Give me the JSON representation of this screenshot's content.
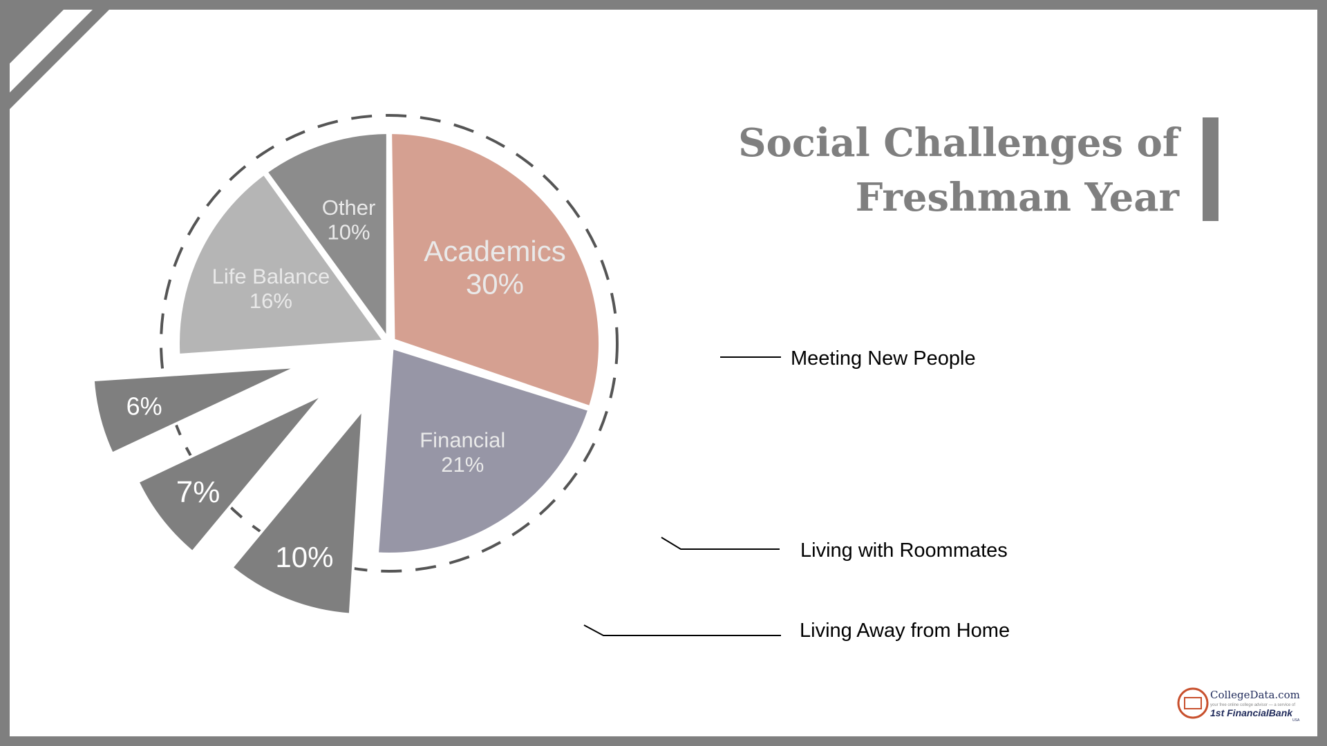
{
  "title_lines": [
    "Social Challenges of",
    "Freshman Year"
  ],
  "chart_data": {
    "type": "pie",
    "title": "Social Challenges of Freshman Year",
    "unit": "%",
    "slices": [
      {
        "name": "Academics",
        "value": 30,
        "label": "30%",
        "color": "#d5a091",
        "exploded": false,
        "legend": false
      },
      {
        "name": "Financial",
        "value": 21,
        "label": "21%",
        "color": "#9796a6",
        "exploded": false,
        "legend": false
      },
      {
        "name": "Meeting New People",
        "value": 10,
        "label": "10%",
        "color": "#7f7f7f",
        "exploded": true,
        "legend": true
      },
      {
        "name": "Living with Roommates",
        "value": 7,
        "label": "7%",
        "color": "#7f7f7f",
        "exploded": true,
        "legend": true
      },
      {
        "name": "Living Away from Home",
        "value": 6,
        "label": "6%",
        "color": "#7f7f7f",
        "exploded": true,
        "legend": true
      },
      {
        "name": "Life Balance",
        "value": 16,
        "label": "16%",
        "color": "#b5b5b5",
        "exploded": false,
        "legend": false
      },
      {
        "name": "Other",
        "value": 10,
        "label": "10%",
        "color": "#8c8c8c",
        "exploded": false,
        "legend": false
      }
    ]
  },
  "brand": {
    "name": "CollegeData.com",
    "tagline": "your free online college advisor — a service of",
    "partner": "1st FinancialBank",
    "partner_suffix": "USA",
    "accent": "#c8502d",
    "frame": "#7f7f7f"
  }
}
